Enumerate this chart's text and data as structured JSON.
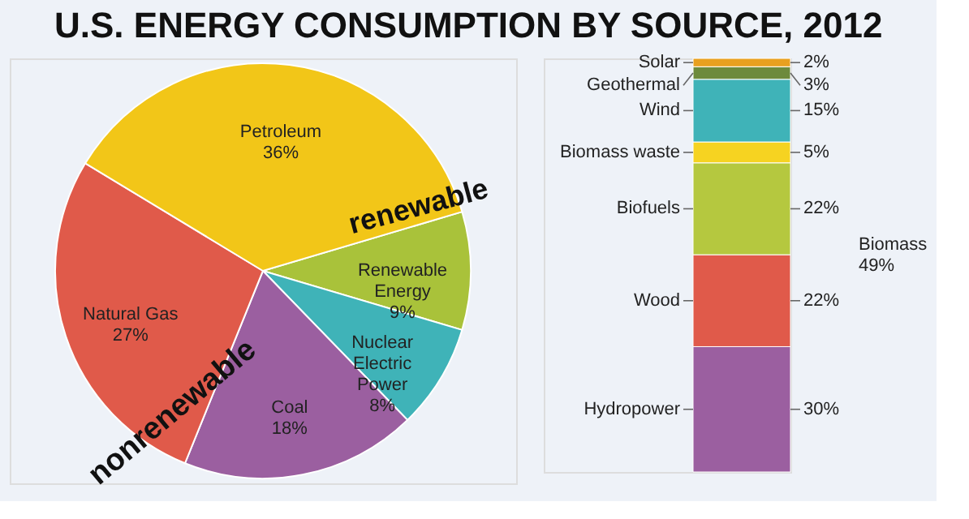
{
  "chart_data": [
    {
      "type": "pie",
      "title": "U.S. ENERGY CONSUMPTION BY SOURCE, 2012",
      "categories": [
        "Renewable Energy",
        "Nuclear Electric Power",
        "Coal",
        "Natural Gas",
        "Petroleum"
      ],
      "values": [
        9,
        8,
        18,
        27,
        36
      ],
      "value_labels": [
        "9%",
        "8%",
        "18%",
        "27%",
        "36%"
      ],
      "colors": [
        "#a9c23a",
        "#3fb3b8",
        "#9b5fa0",
        "#e05a4a",
        "#f2c618"
      ],
      "annotations": [
        "nonrenewable",
        "renewable"
      ]
    },
    {
      "type": "bar",
      "stacked": true,
      "categories": [
        null
      ],
      "series": [
        {
          "name": "Hydropower",
          "color": "#9b5fa0",
          "values": [
            30
          ],
          "value_labels": [
            "30%"
          ]
        },
        {
          "name": "Wood",
          "color": "#e05a4a",
          "values": [
            22
          ],
          "value_labels": [
            "22%"
          ]
        },
        {
          "name": "Biofuels",
          "color": "#b5c83f",
          "values": [
            22
          ],
          "value_labels": [
            "22%"
          ]
        },
        {
          "name": "Biomass waste",
          "color": "#f6d321",
          "values": [
            5
          ],
          "value_labels": [
            "5%"
          ]
        },
        {
          "name": "Wind",
          "color": "#3fb3b8",
          "values": [
            15
          ],
          "value_labels": [
            "15%"
          ]
        },
        {
          "name": "Geothermal",
          "color": "#6d8a3c",
          "values": [
            3
          ],
          "value_labels": [
            "3%"
          ]
        },
        {
          "name": "Solar",
          "color": "#e8a020",
          "values": [
            2
          ],
          "value_labels": [
            "2%"
          ]
        }
      ],
      "annotations": [
        "Biomass 49%"
      ]
    }
  ]
}
